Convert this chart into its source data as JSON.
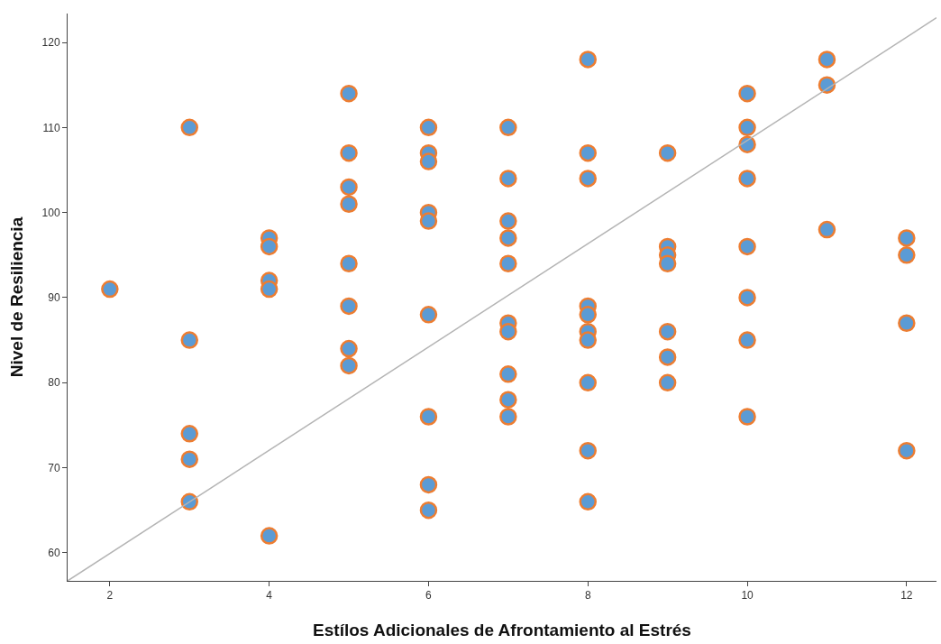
{
  "chart_data": {
    "type": "scatter",
    "xlabel": "Estílos Adicionales de Afrontamiento al Estrés",
    "ylabel": "Nivel de Resiliencia",
    "series": [
      {
        "color": "#5b9bd5",
        "marker": "circle",
        "x": [
          2,
          3,
          3,
          3,
          3,
          3,
          4,
          4,
          4,
          4,
          4,
          5,
          5,
          5,
          5,
          5,
          5,
          5,
          5,
          6,
          6,
          6,
          6,
          6,
          6,
          6,
          6,
          6,
          7,
          7,
          7,
          7,
          7,
          7,
          7,
          7,
          7,
          7,
          8,
          8,
          8,
          8,
          8,
          8,
          8,
          8,
          8,
          8,
          9,
          9,
          9,
          9,
          9,
          9,
          9,
          10,
          10,
          10,
          10,
          10,
          10,
          10,
          10,
          11,
          11,
          11,
          12,
          12,
          12,
          12
        ],
        "values": [
          91,
          110,
          85,
          74,
          71,
          66,
          97,
          96,
          92,
          91,
          62,
          114,
          107,
          103,
          101,
          94,
          89,
          84,
          82,
          110,
          107,
          106,
          100,
          99,
          88,
          76,
          68,
          65,
          110,
          104,
          99,
          97,
          94,
          87,
          86,
          81,
          78,
          76,
          118,
          107,
          104,
          89,
          88,
          86,
          85,
          80,
          72,
          66,
          107,
          96,
          95,
          94,
          86,
          83,
          80,
          114,
          110,
          108,
          104,
          96,
          90,
          85,
          76,
          118,
          115,
          98,
          97,
          95,
          87,
          72
        ]
      },
      {
        "type": "line",
        "color": "#b4b4b4",
        "x": [
          1.47,
          12.375
        ],
        "values": [
          56.7,
          122.9
        ]
      }
    ],
    "xlim": [
      1.47,
      12.375
    ],
    "ylim": [
      56.7,
      123.4
    ],
    "xticks": [
      2,
      4,
      6,
      8,
      10,
      12
    ],
    "yticks": [
      60,
      70,
      80,
      90,
      100,
      110,
      120
    ],
    "grid": false,
    "legend": false
  }
}
